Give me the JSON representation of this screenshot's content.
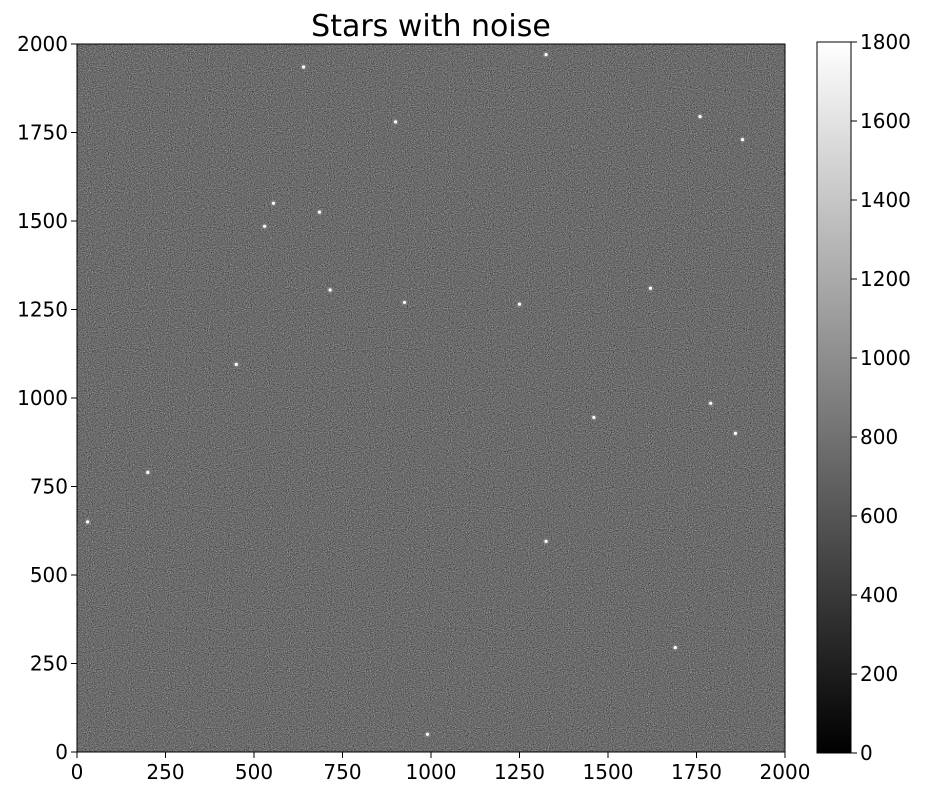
{
  "chart_data": {
    "type": "heatmap",
    "title": "Stars with noise",
    "xlabel": "",
    "ylabel": "",
    "xlim": [
      0,
      2000
    ],
    "ylim": [
      0,
      2000
    ],
    "x_ticks": [
      "0",
      "250",
      "500",
      "750",
      "1000",
      "1250",
      "1500",
      "1750",
      "2000"
    ],
    "y_ticks": [
      "0",
      "250",
      "500",
      "750",
      "1000",
      "1250",
      "1500",
      "1750",
      "2000"
    ],
    "colorbar": {
      "range": [
        0,
        1800
      ],
      "ticks": [
        "0",
        "200",
        "400",
        "600",
        "800",
        "1000",
        "1200",
        "1400",
        "1600",
        "1800"
      ],
      "colormap": "gray"
    },
    "grid": false,
    "background_color": "#1a1a1a",
    "stars": [
      {
        "x": 640,
        "y": 1935
      },
      {
        "x": 1325,
        "y": 1970
      },
      {
        "x": 900,
        "y": 1780
      },
      {
        "x": 1760,
        "y": 1795
      },
      {
        "x": 1880,
        "y": 1730
      },
      {
        "x": 555,
        "y": 1550
      },
      {
        "x": 685,
        "y": 1525
      },
      {
        "x": 530,
        "y": 1485
      },
      {
        "x": 715,
        "y": 1305
      },
      {
        "x": 925,
        "y": 1270
      },
      {
        "x": 1250,
        "y": 1265
      },
      {
        "x": 1620,
        "y": 1310
      },
      {
        "x": 450,
        "y": 1095
      },
      {
        "x": 1860,
        "y": 900
      },
      {
        "x": 200,
        "y": 790
      },
      {
        "x": 30,
        "y": 650
      },
      {
        "x": 1325,
        "y": 595
      },
      {
        "x": 1690,
        "y": 295
      },
      {
        "x": 990,
        "y": 50
      },
      {
        "x": 1790,
        "y": 985
      },
      {
        "x": 1460,
        "y": 945
      }
    ]
  }
}
